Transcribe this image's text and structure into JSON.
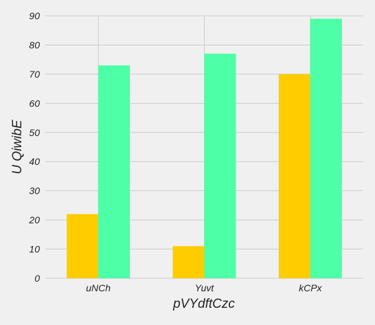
{
  "chart_data": {
    "type": "bar",
    "xlabel": "pVYdftCzc",
    "ylabel": "U QiwibE",
    "categories": [
      "uNCh",
      "Yuvt",
      "kCPx"
    ],
    "series": [
      {
        "values": [
          22,
          11,
          70
        ]
      },
      {
        "values": [
          73,
          77,
          89
        ]
      }
    ],
    "ylim": [
      0,
      90
    ],
    "yticks": [
      0,
      10,
      20,
      30,
      40,
      50,
      60,
      70,
      80,
      90
    ],
    "grid": true,
    "legend": "none"
  },
  "colors": {
    "series": [
      "#ffcc00",
      "#4dffa6"
    ],
    "background": "#f0f0f0",
    "grid": "#cbcbcb"
  }
}
